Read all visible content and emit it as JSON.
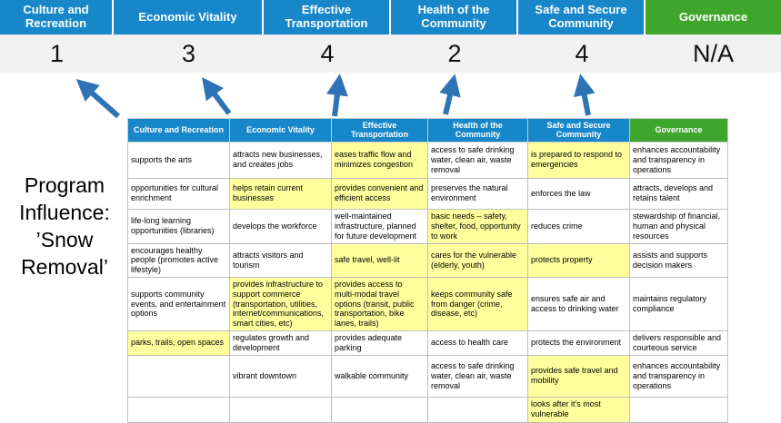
{
  "program_label": "Program Influence: ’Snow Removal’",
  "colors": {
    "category_blue": "#1887c9",
    "governance_green": "#3fa62c",
    "highlight_yellow": "#ffff9e",
    "arrow_blue": "#2e74b5",
    "score_strip_gray": "#f1f1f1"
  },
  "banner": {
    "categories": [
      {
        "label": "Culture and Recreation",
        "score": "1",
        "color": "#1887c9"
      },
      {
        "label": "Economic Vitality",
        "score": "3",
        "color": "#1887c9"
      },
      {
        "label": "Effective Transportation",
        "score": "4",
        "color": "#1887c9"
      },
      {
        "label": "Health of the Community",
        "score": "2",
        "color": "#1887c9"
      },
      {
        "label": "Safe and Secure Community",
        "score": "4",
        "color": "#1887c9"
      },
      {
        "label": "Governance",
        "score": "N/A",
        "color": "#3fa62c"
      }
    ]
  },
  "table": {
    "headers": [
      {
        "label": "Culture and Recreation",
        "color": "#1887c9"
      },
      {
        "label": "Economic Vitality",
        "color": "#1887c9"
      },
      {
        "label": "Effective Transportation",
        "color": "#1887c9"
      },
      {
        "label": "Health of the Community",
        "color": "#1887c9"
      },
      {
        "label": "Safe and Secure Community",
        "color": "#1887c9"
      },
      {
        "label": "Governance",
        "color": "#3fa62c"
      }
    ],
    "rows": [
      [
        {
          "text": "supports the arts",
          "hl": false
        },
        {
          "text": "attracts new businesses, and creates jobs",
          "hl": false
        },
        {
          "text": "eases traffic flow and minimizes congestion",
          "hl": true
        },
        {
          "text": "access to safe drinking water, clean air, waste removal",
          "hl": false
        },
        {
          "text": "is prepared to respond to emergencies",
          "hl": true
        },
        {
          "text": "enhances accountability and transparency in operations",
          "hl": false
        }
      ],
      [
        {
          "text": "opportunities for cultural enrichment",
          "hl": false
        },
        {
          "text": "helps retain current businesses",
          "hl": true
        },
        {
          "text": "provides convenient and efficient access",
          "hl": true
        },
        {
          "text": "preserves the natural environment",
          "hl": false
        },
        {
          "text": "enforces the law",
          "hl": false
        },
        {
          "text": "attracts, develops and retains talent",
          "hl": false
        }
      ],
      [
        {
          "text": "life-long learning opportunities (libraries)",
          "hl": false
        },
        {
          "text": "develops the workforce",
          "hl": false
        },
        {
          "text": "well-maintained infrastructure, planned for future development",
          "hl": false
        },
        {
          "text": "basic needs – safety, shelter, food, opportunity to work",
          "hl": true
        },
        {
          "text": "reduces crime",
          "hl": false
        },
        {
          "text": "stewardship of financial, human and physical resources",
          "hl": false
        }
      ],
      [
        {
          "text": "encourages healthy people (promotes active lifestyle)",
          "hl": false
        },
        {
          "text": "attracts visitors and tourism",
          "hl": false
        },
        {
          "text": "safe travel, well-lit",
          "hl": true
        },
        {
          "text": "cares for the vulnerable (elderly, youth)",
          "hl": true
        },
        {
          "text": "protects property",
          "hl": true
        },
        {
          "text": "assists and supports decision makers",
          "hl": false
        }
      ],
      [
        {
          "text": "supports community events, and entertainment options",
          "hl": false
        },
        {
          "text": "provides infrastructure to support commerce (transportation, utilities, internet/communications, smart cities, etc)",
          "hl": true
        },
        {
          "text": "provides access to multi-modal travel options (transit, public transportation, bike lanes, trails)",
          "hl": true
        },
        {
          "text": "keeps community safe from danger (crime, disease, etc)",
          "hl": true
        },
        {
          "text": "ensures safe air and access to drinking water",
          "hl": false
        },
        {
          "text": "maintains regulatory compliance",
          "hl": false
        }
      ],
      [
        {
          "text": "parks, trails, open spaces",
          "hl": true
        },
        {
          "text": "regulates growth and development",
          "hl": false
        },
        {
          "text": "provides adequate parking",
          "hl": false
        },
        {
          "text": "access to health care",
          "hl": false
        },
        {
          "text": "protects the environment",
          "hl": false
        },
        {
          "text": "delivers responsible and courteous service",
          "hl": false
        }
      ],
      [
        {
          "text": "",
          "hl": false
        },
        {
          "text": "vibrant downtown",
          "hl": false
        },
        {
          "text": "walkable community",
          "hl": false
        },
        {
          "text": "access to safe drinking water, clean air, waste removal",
          "hl": false
        },
        {
          "text": "provides safe travel and mobility",
          "hl": true
        },
        {
          "text": "enhances accountability and transparency in operations",
          "hl": false
        }
      ],
      [
        {
          "text": "",
          "hl": false
        },
        {
          "text": "",
          "hl": false
        },
        {
          "text": "",
          "hl": false
        },
        {
          "text": "",
          "hl": false
        },
        {
          "text": "looks after it's most vulnerable",
          "hl": true
        },
        {
          "text": "",
          "hl": false
        }
      ]
    ]
  }
}
